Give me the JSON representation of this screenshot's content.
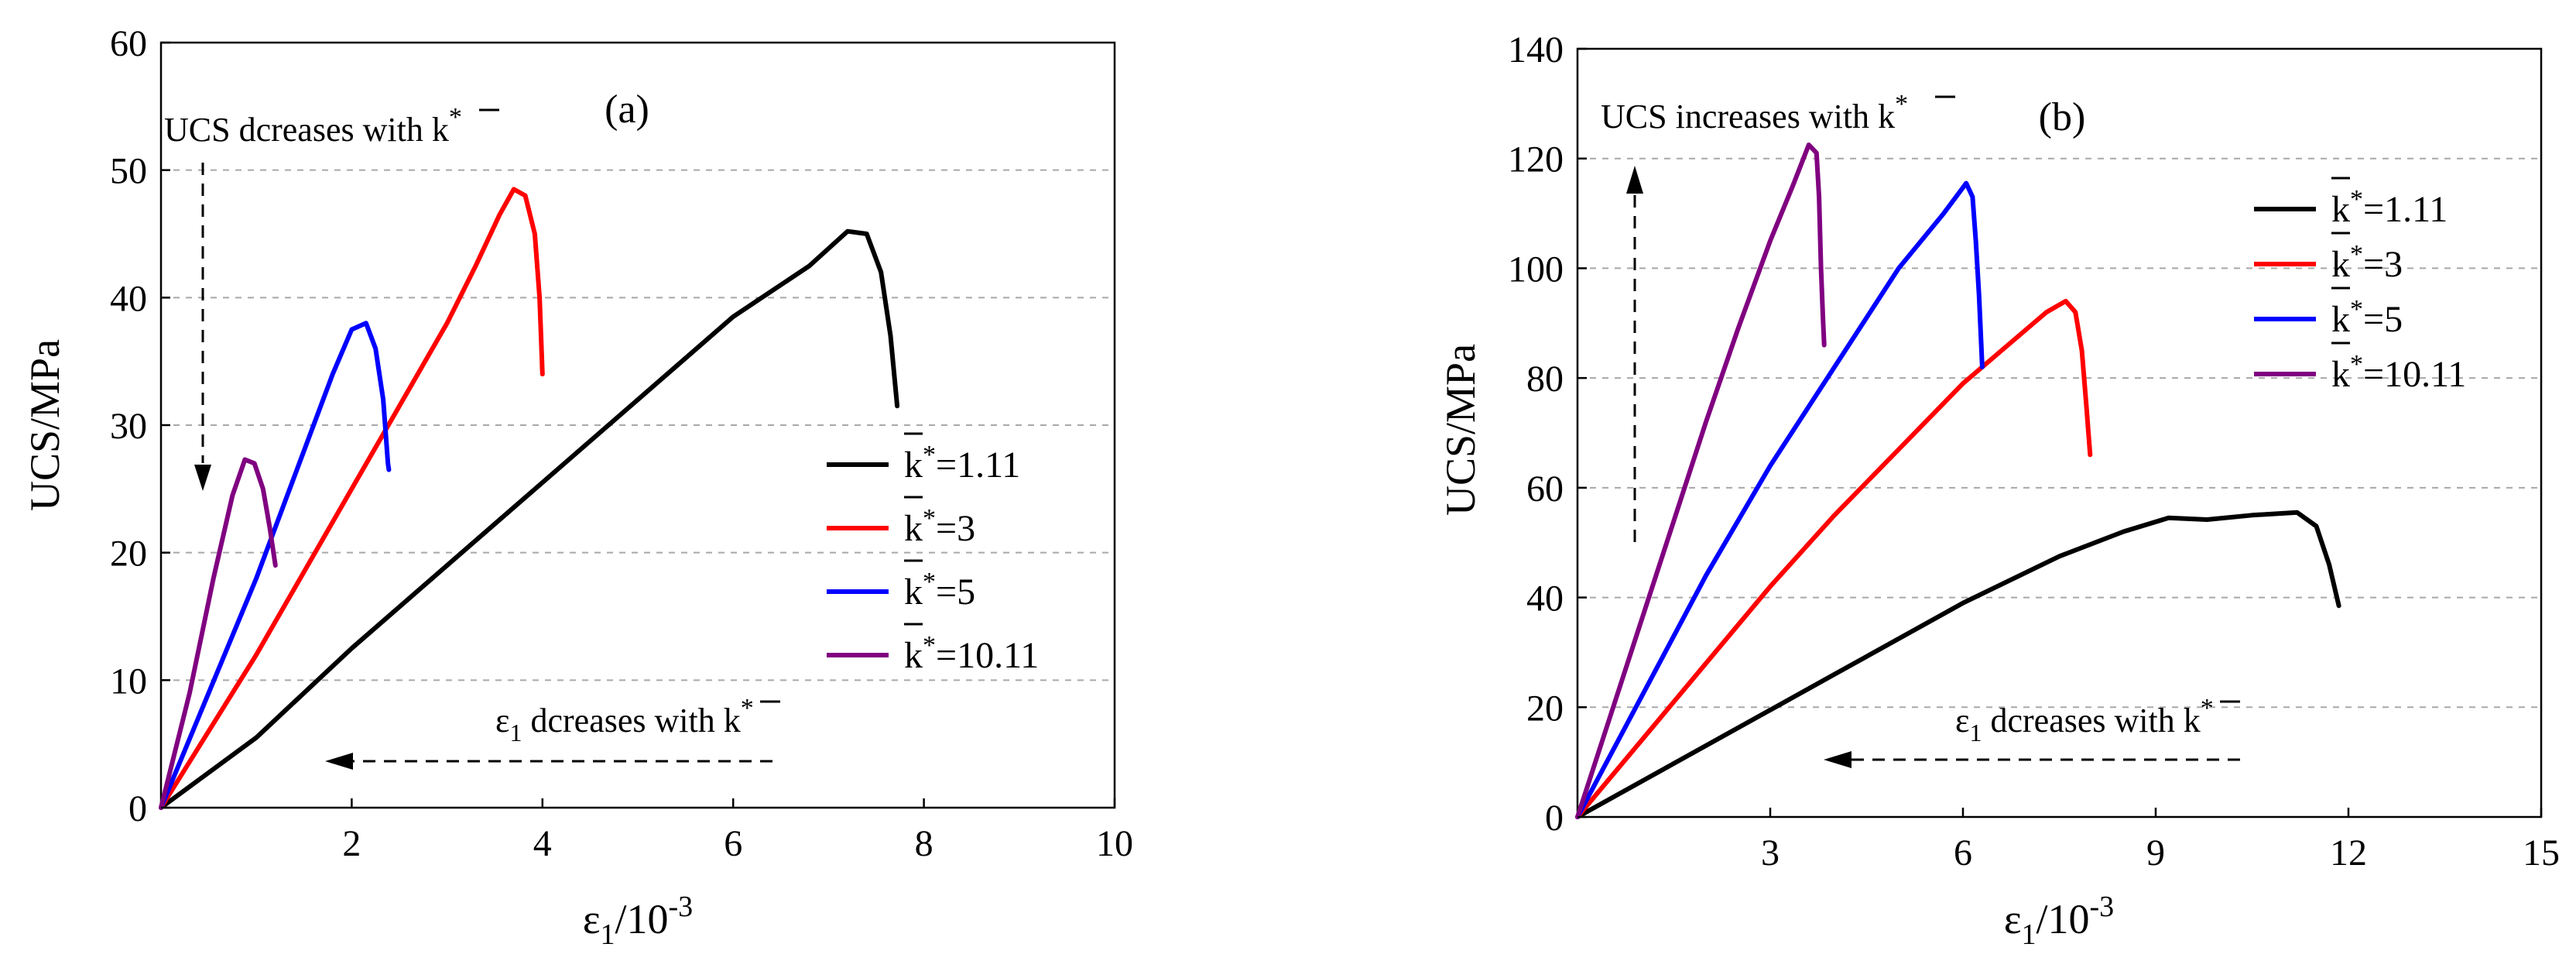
{
  "chart_data": [
    {
      "type": "line",
      "panel_label": "(a)",
      "xlabel_main": "ε",
      "xlabel_sub": "1",
      "xlabel_tail": "/10",
      "xlabel_sup": "-3",
      "ylabel": "UCS/MPa",
      "xlim": [
        0,
        10
      ],
      "ylim": [
        0,
        60
      ],
      "xticks": [
        2,
        4,
        6,
        8,
        10
      ],
      "yticks": [
        0,
        10,
        20,
        30,
        40,
        50,
        60
      ],
      "origin_label": "0",
      "grid": "horizontal dashed",
      "legend_position": "right",
      "series": [
        {
          "name": "k̄*=1.11",
          "k_label": "k",
          "value_label": "=1.11",
          "color": "#000000",
          "points": [
            [
              0,
              0
            ],
            [
              1,
              5.5
            ],
            [
              2,
              12.5
            ],
            [
              3,
              19
            ],
            [
              4,
              25.5
            ],
            [
              5,
              32
            ],
            [
              6,
              38.5
            ],
            [
              6.8,
              42.5
            ],
            [
              7.2,
              45.2
            ],
            [
              7.4,
              45
            ],
            [
              7.55,
              42
            ],
            [
              7.65,
              37
            ],
            [
              7.72,
              31.5
            ]
          ]
        },
        {
          "name": "k̄*=3",
          "k_label": "k",
          "value_label": "=3",
          "color": "#ff0000",
          "points": [
            [
              0,
              0
            ],
            [
              0.5,
              6
            ],
            [
              1,
              12
            ],
            [
              1.5,
              18.5
            ],
            [
              2,
              25
            ],
            [
              2.5,
              31.5
            ],
            [
              3,
              38
            ],
            [
              3.3,
              42.5
            ],
            [
              3.55,
              46.5
            ],
            [
              3.7,
              48.5
            ],
            [
              3.82,
              48
            ],
            [
              3.92,
              45
            ],
            [
              3.97,
              40
            ],
            [
              4.0,
              34
            ]
          ]
        },
        {
          "name": "k̄*=5",
          "k_label": "k",
          "value_label": "=5",
          "color": "#0000ff",
          "points": [
            [
              0,
              0
            ],
            [
              0.5,
              9
            ],
            [
              1,
              18
            ],
            [
              1.5,
              28
            ],
            [
              1.8,
              34
            ],
            [
              2.0,
              37.5
            ],
            [
              2.15,
              38
            ],
            [
              2.25,
              36
            ],
            [
              2.33,
              32
            ],
            [
              2.38,
              27
            ],
            [
              2.39,
              26.5
            ]
          ]
        },
        {
          "name": "k̄*=10.11",
          "k_label": "k",
          "value_label": "=10.11",
          "color": "#800080",
          "points": [
            [
              0,
              0
            ],
            [
              0.3,
              9
            ],
            [
              0.55,
              18
            ],
            [
              0.75,
              24.5
            ],
            [
              0.88,
              27.3
            ],
            [
              0.98,
              27
            ],
            [
              1.07,
              25
            ],
            [
              1.14,
              22
            ],
            [
              1.2,
              19
            ]
          ]
        }
      ],
      "annotations": {
        "trend_y_prefix": "UCS dcreases with ",
        "trend_x_main": "ε",
        "trend_x_sub": "1",
        "trend_x_suffix": " dcreases with ",
        "k_symbol": "k",
        "star": "*"
      }
    },
    {
      "type": "line",
      "panel_label": "(b)",
      "xlabel_main": "ε",
      "xlabel_sub": "1",
      "xlabel_tail": "/10",
      "xlabel_sup": "-3",
      "ylabel": "UCS/MPa",
      "xlim": [
        0,
        15
      ],
      "ylim": [
        0,
        140
      ],
      "xticks": [
        3,
        6,
        9,
        12,
        15
      ],
      "yticks": [
        0,
        20,
        40,
        60,
        80,
        100,
        120,
        140
      ],
      "origin_label": "0",
      "grid": "horizontal dashed",
      "legend_position": "top-right",
      "series": [
        {
          "name": "k̄*=1.11",
          "k_label": "k",
          "value_label": "=1.11",
          "color": "#000000",
          "points": [
            [
              0,
              0
            ],
            [
              2,
              13
            ],
            [
              4,
              26
            ],
            [
              6,
              39
            ],
            [
              7.5,
              47.5
            ],
            [
              8.5,
              52
            ],
            [
              9.2,
              54.5
            ],
            [
              9.8,
              54.2
            ],
            [
              10.5,
              55
            ],
            [
              11.2,
              55.5
            ],
            [
              11.5,
              53
            ],
            [
              11.7,
              46
            ],
            [
              11.85,
              38.5
            ]
          ]
        },
        {
          "name": "k̄*=3",
          "k_label": "k",
          "value_label": "=3",
          "color": "#ff0000",
          "points": [
            [
              0,
              0
            ],
            [
              1,
              14
            ],
            [
              2,
              28
            ],
            [
              3,
              42
            ],
            [
              4,
              55
            ],
            [
              5,
              67
            ],
            [
              6,
              79
            ],
            [
              6.8,
              87
            ],
            [
              7.3,
              92
            ],
            [
              7.6,
              94
            ],
            [
              7.75,
              92
            ],
            [
              7.85,
              85
            ],
            [
              7.92,
              75
            ],
            [
              7.98,
              66
            ]
          ]
        },
        {
          "name": "k̄*=5",
          "k_label": "k",
          "value_label": "=5",
          "color": "#0000ff",
          "points": [
            [
              0,
              0
            ],
            [
              1,
              22
            ],
            [
              2,
              44
            ],
            [
              3,
              64
            ],
            [
              4,
              82
            ],
            [
              5,
              100
            ],
            [
              5.7,
              110
            ],
            [
              6.05,
              115.5
            ],
            [
              6.15,
              113
            ],
            [
              6.2,
              105
            ],
            [
              6.25,
              95
            ],
            [
              6.3,
              82
            ]
          ]
        },
        {
          "name": "k̄*=10.11",
          "k_label": "k",
          "value_label": "=10.11",
          "color": "#800080",
          "points": [
            [
              0,
              0
            ],
            [
              0.5,
              18
            ],
            [
              1,
              36
            ],
            [
              1.5,
              54
            ],
            [
              2,
              72
            ],
            [
              2.5,
              89
            ],
            [
              3,
              105
            ],
            [
              3.35,
              115
            ],
            [
              3.6,
              122.5
            ],
            [
              3.72,
              121
            ],
            [
              3.76,
              113
            ],
            [
              3.79,
              100
            ],
            [
              3.82,
              91
            ],
            [
              3.84,
              86
            ]
          ]
        }
      ],
      "annotations": {
        "trend_y_prefix": "UCS increases with ",
        "trend_x_main": "ε",
        "trend_x_sub": "1",
        "trend_x_suffix": " dcreases with ",
        "k_symbol": "k",
        "star": "*"
      }
    }
  ]
}
